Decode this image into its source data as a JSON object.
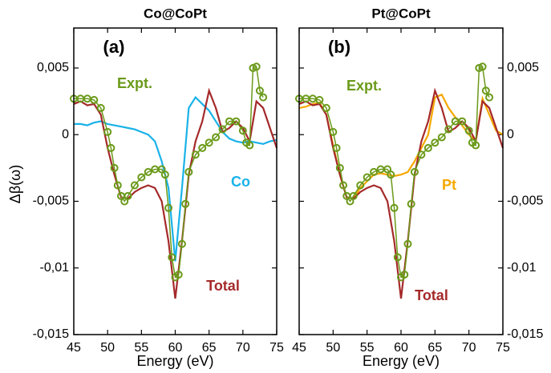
{
  "chart_data": [
    {
      "type": "line",
      "title": "Co@CoPt",
      "panel_label": "(a)",
      "xlabel": "Energy (eV)",
      "ylabel": "Δβ(ω)",
      "y_axis_side": "left",
      "xlim": [
        45,
        75
      ],
      "ylim": [
        -0.015,
        0.008
      ],
      "xticks": [
        45,
        50,
        55,
        60,
        65,
        70,
        75
      ],
      "yticks": [
        {
          "value": -0.015,
          "label": "-0,015"
        },
        {
          "value": -0.01,
          "label": "-0,01"
        },
        {
          "value": -0.005,
          "label": "-0,005"
        },
        0,
        {
          "value": 0.005,
          "label": "0,005"
        }
      ],
      "series": [
        {
          "name": "Co",
          "color": "#1ab2e8",
          "markers": false,
          "x": [
            45,
            46,
            47,
            48,
            49,
            50,
            51,
            52,
            53,
            54,
            55,
            56,
            57,
            58,
            59,
            60,
            61,
            62,
            63,
            64,
            65,
            66,
            67,
            68,
            69,
            70,
            71,
            72,
            73,
            74,
            75
          ],
          "values": [
            0.0008,
            0.0008,
            0.0007,
            0.0009,
            0.001,
            0.0008,
            0.0007,
            0.0006,
            0.0005,
            0.0004,
            0.0002,
            0.0,
            -0.0005,
            -0.002,
            -0.004,
            -0.0095,
            -0.004,
            0.002,
            0.0028,
            0.0023,
            0.0018,
            0.001,
            0.0002,
            -0.0003,
            -0.0005,
            -0.0006,
            -0.0005,
            -0.0006,
            -0.0007,
            -0.0005,
            -0.0004
          ]
        },
        {
          "name": "Total",
          "color": "#a52a2a",
          "markers": false,
          "x": [
            45,
            46,
            47,
            48,
            49,
            50,
            51,
            52,
            53,
            54,
            55,
            56,
            57,
            58,
            59,
            60,
            61,
            62,
            63,
            64,
            65,
            66,
            67,
            68,
            69,
            70,
            71,
            72,
            73,
            74,
            75
          ],
          "values": [
            0.0023,
            0.0025,
            0.0022,
            0.0023,
            0.0015,
            -0.001,
            -0.003,
            -0.0047,
            -0.0048,
            -0.0043,
            -0.004,
            -0.0038,
            -0.004,
            -0.005,
            -0.008,
            -0.0123,
            -0.008,
            -0.003,
            -0.0005,
            0.001,
            0.0033,
            0.002,
            0.0002,
            0.0005,
            0.001,
            0.0005,
            -0.0005,
            0.0025,
            0.002,
            0.0005,
            -0.001
          ]
        },
        {
          "name": "Expt.",
          "color": "#6b9a1a",
          "markers": true,
          "x": [
            45,
            46,
            47,
            48,
            49,
            50,
            50.5,
            51,
            51.5,
            52,
            52.5,
            53,
            54,
            55,
            56,
            57,
            58,
            58.5,
            59,
            59.5,
            60,
            60.5,
            61,
            61.5,
            62,
            63,
            64,
            65,
            66,
            67,
            68,
            69,
            70,
            70.5,
            71,
            71.5,
            72,
            72.5,
            73
          ],
          "values": [
            0.0027,
            0.0027,
            0.0027,
            0.0026,
            0.002,
            0.0002,
            -0.001,
            -0.0025,
            -0.0038,
            -0.0046,
            -0.005,
            -0.0046,
            -0.0038,
            -0.0032,
            -0.0028,
            -0.0026,
            -0.0026,
            -0.003,
            -0.0055,
            -0.0092,
            -0.0107,
            -0.0105,
            -0.0082,
            -0.0052,
            -0.0028,
            -0.0015,
            -0.001,
            -0.0006,
            -0.0002,
            0.0004,
            0.001,
            0.001,
            0.0003,
            -0.0006,
            -0.0008,
            0.005,
            0.0051,
            0.0033,
            0.0028
          ]
        }
      ]
    },
    {
      "type": "line",
      "title": "Pt@CoPt",
      "panel_label": "(b)",
      "xlabel": "Energy (eV)",
      "y_axis_side": "right",
      "xlim": [
        45,
        75
      ],
      "ylim": [
        -0.015,
        0.008
      ],
      "xticks": [
        45,
        50,
        55,
        60,
        65,
        70,
        75
      ],
      "yticks": [
        {
          "value": -0.015,
          "label": "-0,015"
        },
        {
          "value": -0.01,
          "label": "-0,01"
        },
        {
          "value": -0.005,
          "label": "-0,005"
        },
        0,
        {
          "value": 0.005,
          "label": "0,005"
        }
      ],
      "series": [
        {
          "name": "Pt",
          "color": "#f5a800",
          "markers": false,
          "x": [
            45,
            46,
            47,
            48,
            49,
            50,
            51,
            52,
            53,
            54,
            55,
            56,
            57,
            58,
            59,
            60,
            61,
            62,
            63,
            64,
            65,
            66,
            67,
            68,
            69,
            70,
            71,
            72,
            73,
            74,
            75
          ],
          "values": [
            0.002,
            0.0021,
            0.0023,
            0.0024,
            0.0015,
            -0.0008,
            -0.003,
            -0.0047,
            -0.0048,
            -0.004,
            -0.0035,
            -0.003,
            -0.0029,
            -0.003,
            -0.0031,
            -0.003,
            -0.0028,
            -0.002,
            -0.001,
            0.0,
            0.0028,
            0.003,
            0.002,
            0.0013,
            0.0007,
            0.0,
            -0.0005,
            0.0027,
            0.0015,
            0.0003,
            0.0
          ]
        },
        {
          "name": "Total",
          "color": "#a52a2a",
          "markers": false,
          "x": [
            45,
            46,
            47,
            48,
            49,
            50,
            51,
            52,
            53,
            54,
            55,
            56,
            57,
            58,
            59,
            60,
            61,
            62,
            63,
            64,
            65,
            66,
            67,
            68,
            69,
            70,
            71,
            72,
            73,
            74,
            75
          ],
          "values": [
            0.0023,
            0.0025,
            0.0022,
            0.0023,
            0.0015,
            -0.001,
            -0.003,
            -0.0047,
            -0.0048,
            -0.0043,
            -0.004,
            -0.0038,
            -0.004,
            -0.005,
            -0.008,
            -0.0123,
            -0.008,
            -0.003,
            -0.0005,
            0.001,
            0.0033,
            0.002,
            0.0002,
            0.0005,
            0.001,
            0.0005,
            -0.0005,
            0.0025,
            0.002,
            0.0005,
            -0.001
          ]
        },
        {
          "name": "Expt.",
          "color": "#6b9a1a",
          "markers": true,
          "x": [
            45,
            46,
            47,
            48,
            49,
            50,
            50.5,
            51,
            51.5,
            52,
            52.5,
            53,
            54,
            55,
            56,
            57,
            58,
            58.5,
            59,
            59.5,
            60,
            60.5,
            61,
            61.5,
            62,
            63,
            64,
            65,
            66,
            67,
            68,
            69,
            70,
            70.5,
            71,
            71.5,
            72,
            72.5,
            73
          ],
          "values": [
            0.0027,
            0.0027,
            0.0027,
            0.0026,
            0.002,
            0.0002,
            -0.001,
            -0.0025,
            -0.0038,
            -0.0046,
            -0.005,
            -0.0046,
            -0.0038,
            -0.0032,
            -0.0028,
            -0.0026,
            -0.0026,
            -0.003,
            -0.0055,
            -0.0092,
            -0.0107,
            -0.0105,
            -0.0082,
            -0.0052,
            -0.0028,
            -0.0015,
            -0.001,
            -0.0006,
            -0.0002,
            0.0004,
            0.001,
            0.001,
            0.0003,
            -0.0006,
            -0.0008,
            0.005,
            0.0051,
            0.0033,
            0.0028
          ]
        }
      ]
    }
  ]
}
